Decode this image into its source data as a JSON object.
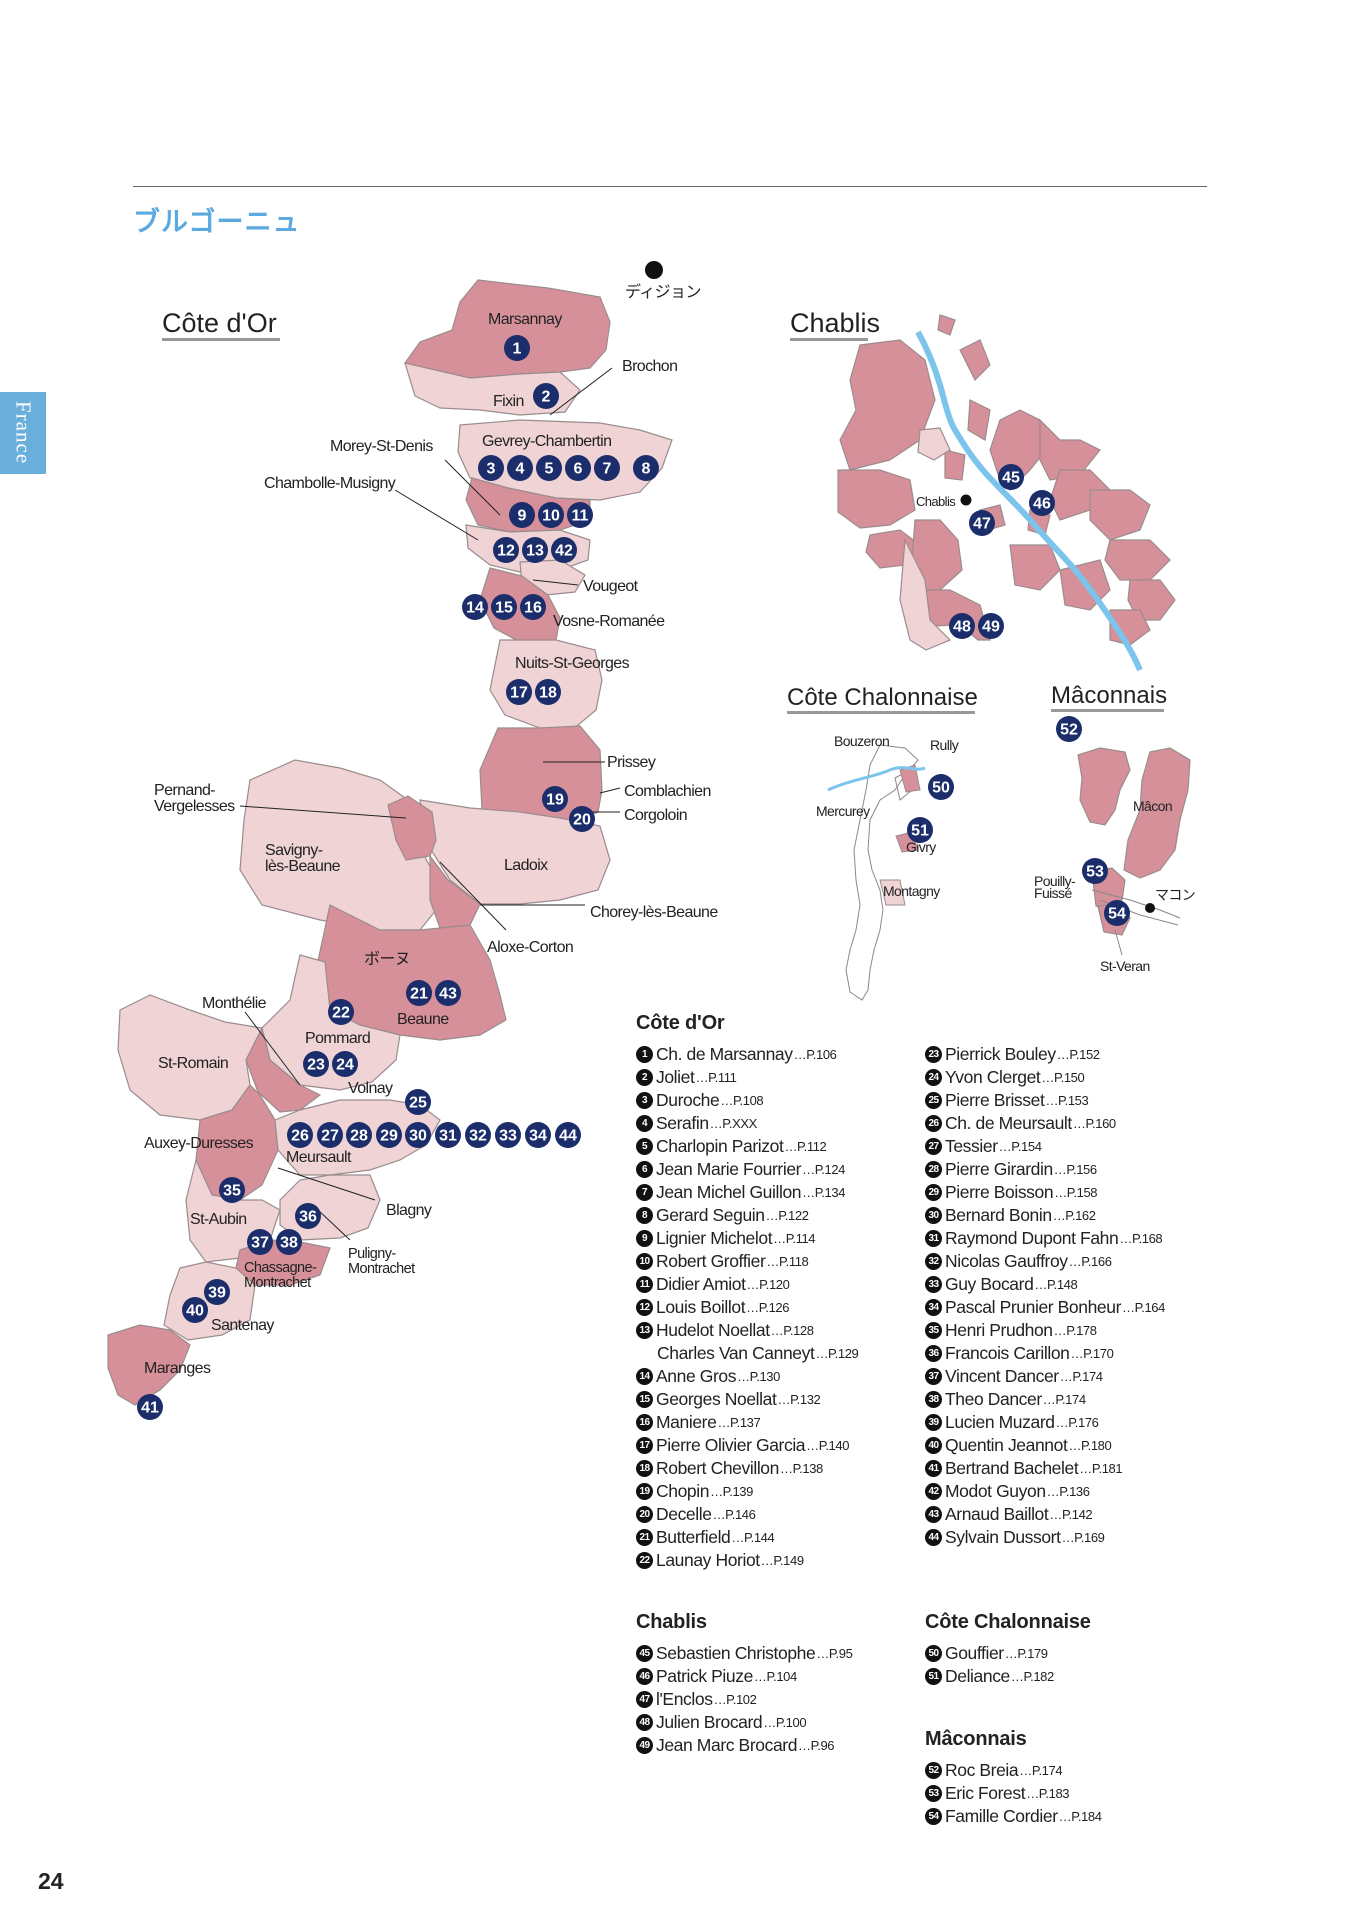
{
  "header": {
    "region_title": "ブルゴーニュ",
    "side_tab": "France",
    "page_number": "24"
  },
  "colors": {
    "vineyard_dark": "#d6909a",
    "vineyard_light": "#efd3d5",
    "vineyard_mid": "#e2b3b8",
    "river": "#7cc4ec",
    "badge": "#1b2d6b",
    "accent": "#5aaadf"
  },
  "maps": {
    "cote_dor": {
      "title": "Côte d'Or",
      "city": "ディジョン",
      "labels": {
        "marsannay": "Marsannay",
        "brochon": "Brochon",
        "fixin": "Fixin",
        "gevrey": "Gevrey-Chambertin",
        "morey": "Morey-St-Denis",
        "chambolle": "Chambolle-Musigny",
        "vougeot": "Vougeot",
        "vosne": "Vosne-Romanée",
        "nuits": "Nuits-St-Georges",
        "prissey": "Prissey",
        "comblanchien": "Comblachien",
        "corgoloin": "Corgoloin",
        "pernand": "Pernand-\nVergelesses",
        "savigny": "Savigny-\nlès-Beaune",
        "ladoix": "Ladoix",
        "chorey": "Chorey-lès-Beaune",
        "aloxe": "Aloxe-Corton",
        "beaune_jp": "ボーヌ",
        "beaune": "Beaune",
        "monthelie": "Monthélie",
        "pommard": "Pommard",
        "st_romain": "St-Romain",
        "volnay": "Volnay",
        "auxey": "Auxey-Duresses",
        "meursault": "Meursault",
        "blagny": "Blagny",
        "st_aubin": "St-Aubin",
        "puligny": "Puligny-\nMontrachet",
        "chassagne": "Chassagne-\nMontrachet",
        "santenay": "Santenay",
        "maranges": "Maranges"
      }
    },
    "chablis": {
      "title": "Chablis",
      "town": "Chablis"
    },
    "chalonnaise": {
      "title": "Côte Chalonnaise",
      "labels": {
        "bouzeron": "Bouzeron",
        "rully": "Rully",
        "mercurey": "Mercurey",
        "givry": "Givry",
        "montagny": "Montagny"
      }
    },
    "maconnais": {
      "title": "Mâconnais",
      "labels": {
        "macon": "Mâcon",
        "pouilly": "Pouilly-\nFuissé",
        "macon_jp": "マコン",
        "st_veran": "St-Veran"
      }
    }
  },
  "legend": {
    "cote_dor": {
      "heading": "Côte d'Or",
      "col1": [
        {
          "n": "1",
          "name": "Ch. de Marsannay",
          "page": "…P.106"
        },
        {
          "n": "2",
          "name": "Joliet",
          "page": "…P.111"
        },
        {
          "n": "3",
          "name": "Duroche",
          "page": "…P.108"
        },
        {
          "n": "4",
          "name": "Serafin",
          "page": "…P.XXX"
        },
        {
          "n": "5",
          "name": "Charlopin Parizot",
          "page": "…P.112"
        },
        {
          "n": "6",
          "name": "Jean Marie Fourrier",
          "page": "…P.124"
        },
        {
          "n": "7",
          "name": "Jean Michel Guillon",
          "page": "…P.134"
        },
        {
          "n": "8",
          "name": "Gerard Seguin",
          "page": "…P.122"
        },
        {
          "n": "9",
          "name": "Lignier Michelot",
          "page": "…P.114"
        },
        {
          "n": "10",
          "name": "Robert Groffier",
          "page": "…P.118"
        },
        {
          "n": "11",
          "name": "Didier Amiot",
          "page": "…P.120"
        },
        {
          "n": "12",
          "name": "Louis Boillot",
          "page": "…P.126"
        },
        {
          "n": "13",
          "name": "Hudelot Noellat",
          "page": "…P.128"
        },
        {
          "n": "",
          "name": "Charles Van Canneyt",
          "page": "…P.129"
        },
        {
          "n": "14",
          "name": "Anne Gros",
          "page": "…P.130"
        },
        {
          "n": "15",
          "name": "Georges Noellat",
          "page": "…P.132"
        },
        {
          "n": "16",
          "name": "Maniere",
          "page": "…P.137"
        },
        {
          "n": "17",
          "name": "Pierre Olivier Garcia",
          "page": "…P.140"
        },
        {
          "n": "18",
          "name": "Robert Chevillon",
          "page": "…P.138"
        },
        {
          "n": "19",
          "name": "Chopin",
          "page": "…P.139"
        },
        {
          "n": "20",
          "name": "Decelle",
          "page": "…P.146"
        },
        {
          "n": "21",
          "name": "Butterfield",
          "page": "…P.144"
        },
        {
          "n": "22",
          "name": "Launay Horiot",
          "page": "…P.149"
        }
      ],
      "col2": [
        {
          "n": "23",
          "name": "Pierrick Bouley",
          "page": "…P.152"
        },
        {
          "n": "24",
          "name": "Yvon Clerget",
          "page": "…P.150"
        },
        {
          "n": "25",
          "name": "Pierre Brisset",
          "page": "…P.153"
        },
        {
          "n": "26",
          "name": "Ch. de Meursault",
          "page": "…P.160"
        },
        {
          "n": "27",
          "name": "Tessier",
          "page": "…P.154"
        },
        {
          "n": "28",
          "name": "Pierre Girardin",
          "page": "…P.156"
        },
        {
          "n": "29",
          "name": "Pierre Boisson",
          "page": "…P.158"
        },
        {
          "n": "30",
          "name": "Bernard Bonin",
          "page": "…P.162"
        },
        {
          "n": "31",
          "name": "Raymond Dupont Fahn",
          "page": "…P.168"
        },
        {
          "n": "32",
          "name": "Nicolas Gauffroy",
          "page": "…P.166"
        },
        {
          "n": "33",
          "name": "Guy Bocard",
          "page": "…P.148"
        },
        {
          "n": "34",
          "name": "Pascal Prunier Bonheur",
          "page": "…P.164"
        },
        {
          "n": "35",
          "name": "Henri Prudhon",
          "page": "…P.178"
        },
        {
          "n": "36",
          "name": "Francois Carillon",
          "page": "…P.170"
        },
        {
          "n": "37",
          "name": "Vincent Dancer",
          "page": "…P.174"
        },
        {
          "n": "38",
          "name": "Theo Dancer",
          "page": "…P.174"
        },
        {
          "n": "39",
          "name": "Lucien Muzard",
          "page": "…P.176"
        },
        {
          "n": "40",
          "name": "Quentin Jeannot",
          "page": "…P.180"
        },
        {
          "n": "41",
          "name": "Bertrand Bachelet",
          "page": "…P.181"
        },
        {
          "n": "42",
          "name": "Modot Guyon",
          "page": "…P.136"
        },
        {
          "n": "43",
          "name": "Arnaud Baillot",
          "page": "…P.142"
        },
        {
          "n": "44",
          "name": "Sylvain Dussort",
          "page": "…P.169"
        }
      ]
    },
    "chablis": {
      "heading": "Chablis",
      "items": [
        {
          "n": "45",
          "name": "Sebastien Christophe",
          "page": "…P.95"
        },
        {
          "n": "46",
          "name": "Patrick Piuze",
          "page": "…P.104"
        },
        {
          "n": "47",
          "name": "l'Enclos",
          "page": "…P.102"
        },
        {
          "n": "48",
          "name": "Julien Brocard",
          "page": "…P.100"
        },
        {
          "n": "49",
          "name": "Jean Marc Brocard",
          "page": "…P.96"
        }
      ]
    },
    "chalonnaise": {
      "heading": "Côte Chalonnaise",
      "items": [
        {
          "n": "50",
          "name": "Gouffier",
          "page": "…P.179"
        },
        {
          "n": "51",
          "name": "Deliance",
          "page": "…P.182"
        }
      ]
    },
    "maconnais": {
      "heading": "Mâconnais",
      "items": [
        {
          "n": "52",
          "name": "Roc Breia",
          "page": "…P.174"
        },
        {
          "n": "53",
          "name": "Eric Forest",
          "page": "…P.183"
        },
        {
          "n": "54",
          "name": "Famille Cordier",
          "page": "…P.184"
        }
      ]
    }
  }
}
